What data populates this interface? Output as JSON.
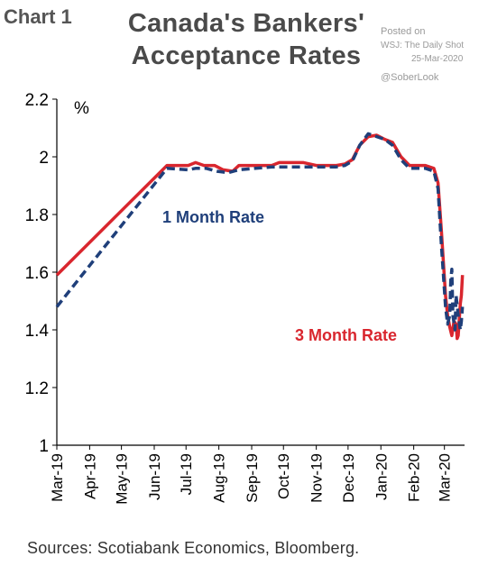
{
  "header": {
    "chart_number": "Chart 1",
    "title_line1": "Canada's Bankers'",
    "title_line2": "Acceptance Rates",
    "posted_label": "Posted on",
    "posted_source": "WSJ: The Daily Shot",
    "posted_date": "25-Mar-2020",
    "handle": "@SoberLook"
  },
  "footer": {
    "source": "Sources: Scotiabank Economics, Bloomberg."
  },
  "chart_data": {
    "type": "line",
    "ylabel": "%",
    "ylim": [
      1.0,
      2.2
    ],
    "yticks": [
      1,
      1.2,
      1.4,
      1.6,
      1.8,
      2,
      2.2
    ],
    "ytick_labels": [
      "1",
      "1.2",
      "1.4",
      "1.6",
      "1.8",
      "2",
      "2.2"
    ],
    "xlim": [
      "2019-03-01",
      "2020-03-20"
    ],
    "xtick_dates": [
      "2019-03-01",
      "2019-04-01",
      "2019-05-01",
      "2019-06-01",
      "2019-07-01",
      "2019-08-01",
      "2019-09-01",
      "2019-10-01",
      "2019-11-01",
      "2019-12-01",
      "2020-01-01",
      "2020-02-01",
      "2020-03-01"
    ],
    "xtick_labels": [
      "Mar-19",
      "Apr-19",
      "May-19",
      "Jun-19",
      "Jul-19",
      "Aug-19",
      "Sep-19",
      "Oct-19",
      "Nov-19",
      "Dec-19",
      "Jan-20",
      "Feb-20",
      "Mar-20"
    ],
    "grid": false,
    "series": [
      {
        "name": "3 Month Rate",
        "color": "#d9262e",
        "style": "solid",
        "points": [
          [
            "2019-03-01",
            1.59
          ],
          [
            "2019-06-13",
            1.97
          ],
          [
            "2019-07-03",
            1.97
          ],
          [
            "2019-07-10",
            1.98
          ],
          [
            "2019-07-18",
            1.97
          ],
          [
            "2019-07-28",
            1.97
          ],
          [
            "2019-08-05",
            1.955
          ],
          [
            "2019-08-14",
            1.95
          ],
          [
            "2019-08-20",
            1.97
          ],
          [
            "2019-09-20",
            1.97
          ],
          [
            "2019-09-27",
            1.98
          ],
          [
            "2019-10-20",
            1.98
          ],
          [
            "2019-11-01",
            1.97
          ],
          [
            "2019-11-20",
            1.97
          ],
          [
            "2019-11-28",
            1.975
          ],
          [
            "2019-12-05",
            1.99
          ],
          [
            "2019-12-12",
            2.04
          ],
          [
            "2019-12-20",
            2.07
          ],
          [
            "2019-12-28",
            2.075
          ],
          [
            "2020-01-05",
            2.06
          ],
          [
            "2020-01-12",
            2.05
          ],
          [
            "2020-01-20",
            2.0
          ],
          [
            "2020-01-28",
            1.97
          ],
          [
            "2020-02-12",
            1.97
          ],
          [
            "2020-02-20",
            1.96
          ],
          [
            "2020-02-24",
            1.91
          ],
          [
            "2020-02-27",
            1.75
          ],
          [
            "2020-03-02",
            1.52
          ],
          [
            "2020-03-04",
            1.45
          ],
          [
            "2020-03-06",
            1.41
          ],
          [
            "2020-03-08",
            1.38
          ],
          [
            "2020-03-10",
            1.43
          ],
          [
            "2020-03-12",
            1.42
          ],
          [
            "2020-03-13",
            1.37
          ],
          [
            "2020-03-14",
            1.38
          ],
          [
            "2020-03-16",
            1.49
          ],
          [
            "2020-03-17",
            1.52
          ],
          [
            "2020-03-18",
            1.59
          ]
        ]
      },
      {
        "name": "1 Month Rate",
        "color": "#1f3f7a",
        "style": "dashed",
        "points": [
          [
            "2019-03-01",
            1.48
          ],
          [
            "2019-06-13",
            1.96
          ],
          [
            "2019-07-03",
            1.955
          ],
          [
            "2019-07-10",
            1.96
          ],
          [
            "2019-07-20",
            1.96
          ],
          [
            "2019-07-30",
            1.95
          ],
          [
            "2019-08-10",
            1.945
          ],
          [
            "2019-08-20",
            1.955
          ],
          [
            "2019-09-20",
            1.965
          ],
          [
            "2019-10-20",
            1.965
          ],
          [
            "2019-11-20",
            1.965
          ],
          [
            "2019-11-28",
            1.97
          ],
          [
            "2019-12-05",
            1.985
          ],
          [
            "2019-12-12",
            2.04
          ],
          [
            "2019-12-20",
            2.08
          ],
          [
            "2019-12-28",
            2.07
          ],
          [
            "2020-01-05",
            2.06
          ],
          [
            "2020-01-12",
            2.04
          ],
          [
            "2020-01-20",
            1.99
          ],
          [
            "2020-01-28",
            1.96
          ],
          [
            "2020-02-12",
            1.96
          ],
          [
            "2020-02-20",
            1.95
          ],
          [
            "2020-02-24",
            1.89
          ],
          [
            "2020-02-27",
            1.7
          ],
          [
            "2020-03-02",
            1.48
          ],
          [
            "2020-03-04",
            1.42
          ],
          [
            "2020-03-06",
            1.45
          ],
          [
            "2020-03-07",
            1.57
          ],
          [
            "2020-03-08",
            1.61
          ],
          [
            "2020-03-09",
            1.45
          ],
          [
            "2020-03-11",
            1.4
          ],
          [
            "2020-03-12",
            1.52
          ],
          [
            "2020-03-14",
            1.45
          ],
          [
            "2020-03-16",
            1.4
          ],
          [
            "2020-03-17",
            1.43
          ],
          [
            "2020-03-18",
            1.48
          ]
        ]
      }
    ],
    "annotations": [
      {
        "text": "1 Month Rate",
        "color": "#1f3f7a"
      },
      {
        "text": "3 Month Rate",
        "color": "#d9262e"
      }
    ]
  }
}
